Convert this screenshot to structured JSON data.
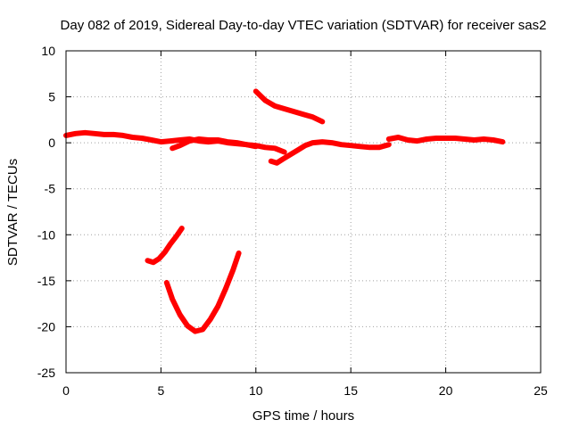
{
  "chart_data": {
    "type": "line",
    "title": "Day 082 of 2019, Sidereal Day-to-day VTEC variation (SDTVAR) for receiver sas2",
    "xlabel": "GPS time / hours",
    "ylabel": "SDTVAR / TECUs",
    "xlim": [
      0,
      25
    ],
    "ylim": [
      -25,
      10
    ],
    "xticks": [
      0,
      5,
      10,
      15,
      20,
      25
    ],
    "yticks": [
      10,
      5,
      0,
      -5,
      -10,
      -15,
      -20,
      -25
    ],
    "grid": true,
    "legend": "none",
    "series_color": "#ff0000",
    "series": [
      {
        "name": "segment-1",
        "x": [
          0,
          0.5,
          1,
          1.5,
          2,
          2.5,
          3,
          3.5,
          4,
          4.5,
          5,
          5.5,
          6,
          6.5,
          7,
          7.5,
          8,
          8.5,
          9,
          9.5,
          10,
          10.5,
          11,
          11.5
        ],
        "y": [
          0.8,
          1.0,
          1.1,
          1.0,
          0.9,
          0.9,
          0.8,
          0.6,
          0.5,
          0.3,
          0.1,
          0.2,
          0.3,
          0.4,
          0.2,
          0.1,
          0.2,
          0.0,
          -0.1,
          -0.2,
          -0.3,
          -0.5,
          -0.6,
          -1.0
        ]
      },
      {
        "name": "segment-2",
        "x": [
          5.6,
          6,
          6.5,
          7,
          7.5,
          8,
          8.5,
          9,
          9.5,
          10
        ],
        "y": [
          -0.6,
          -0.3,
          0.2,
          0.4,
          0.3,
          0.3,
          0.1,
          0.0,
          -0.2,
          -0.4
        ]
      },
      {
        "name": "segment-3",
        "x": [
          10.8,
          11.1,
          11.4,
          11.8,
          12.2,
          12.6,
          13,
          13.5,
          14,
          14.5,
          15,
          15.5,
          16,
          16.5,
          17
        ],
        "y": [
          -2.0,
          -2.2,
          -1.8,
          -1.3,
          -0.8,
          -0.3,
          0.0,
          0.1,
          0.0,
          -0.2,
          -0.3,
          -0.4,
          -0.5,
          -0.5,
          -0.2
        ]
      },
      {
        "name": "segment-4",
        "x": [
          17,
          17.5,
          18,
          18.5,
          19,
          19.5,
          20,
          20.5,
          21,
          21.5,
          22,
          22.5,
          23
        ],
        "y": [
          0.4,
          0.6,
          0.3,
          0.2,
          0.4,
          0.5,
          0.5,
          0.5,
          0.4,
          0.3,
          0.4,
          0.3,
          0.1
        ]
      },
      {
        "name": "segment-5",
        "x": [
          10,
          10.5,
          11,
          11.5,
          12,
          12.5,
          13,
          13.5
        ],
        "y": [
          5.6,
          4.6,
          4.0,
          3.7,
          3.4,
          3.1,
          2.8,
          2.3
        ]
      },
      {
        "name": "segment-6",
        "x": [
          4.3,
          4.6,
          4.9,
          5.2,
          5.5,
          5.8,
          6.1
        ],
        "y": [
          -12.8,
          -13.0,
          -12.6,
          -11.9,
          -11.0,
          -10.2,
          -9.3
        ]
      },
      {
        "name": "segment-7",
        "x": [
          5.3,
          5.6,
          6,
          6.4,
          6.8,
          7.2,
          7.6,
          8,
          8.4,
          8.8,
          9.1
        ],
        "y": [
          -15.2,
          -17.0,
          -18.7,
          -19.9,
          -20.5,
          -20.3,
          -19.2,
          -17.8,
          -15.9,
          -13.8,
          -12.0
        ]
      }
    ]
  }
}
